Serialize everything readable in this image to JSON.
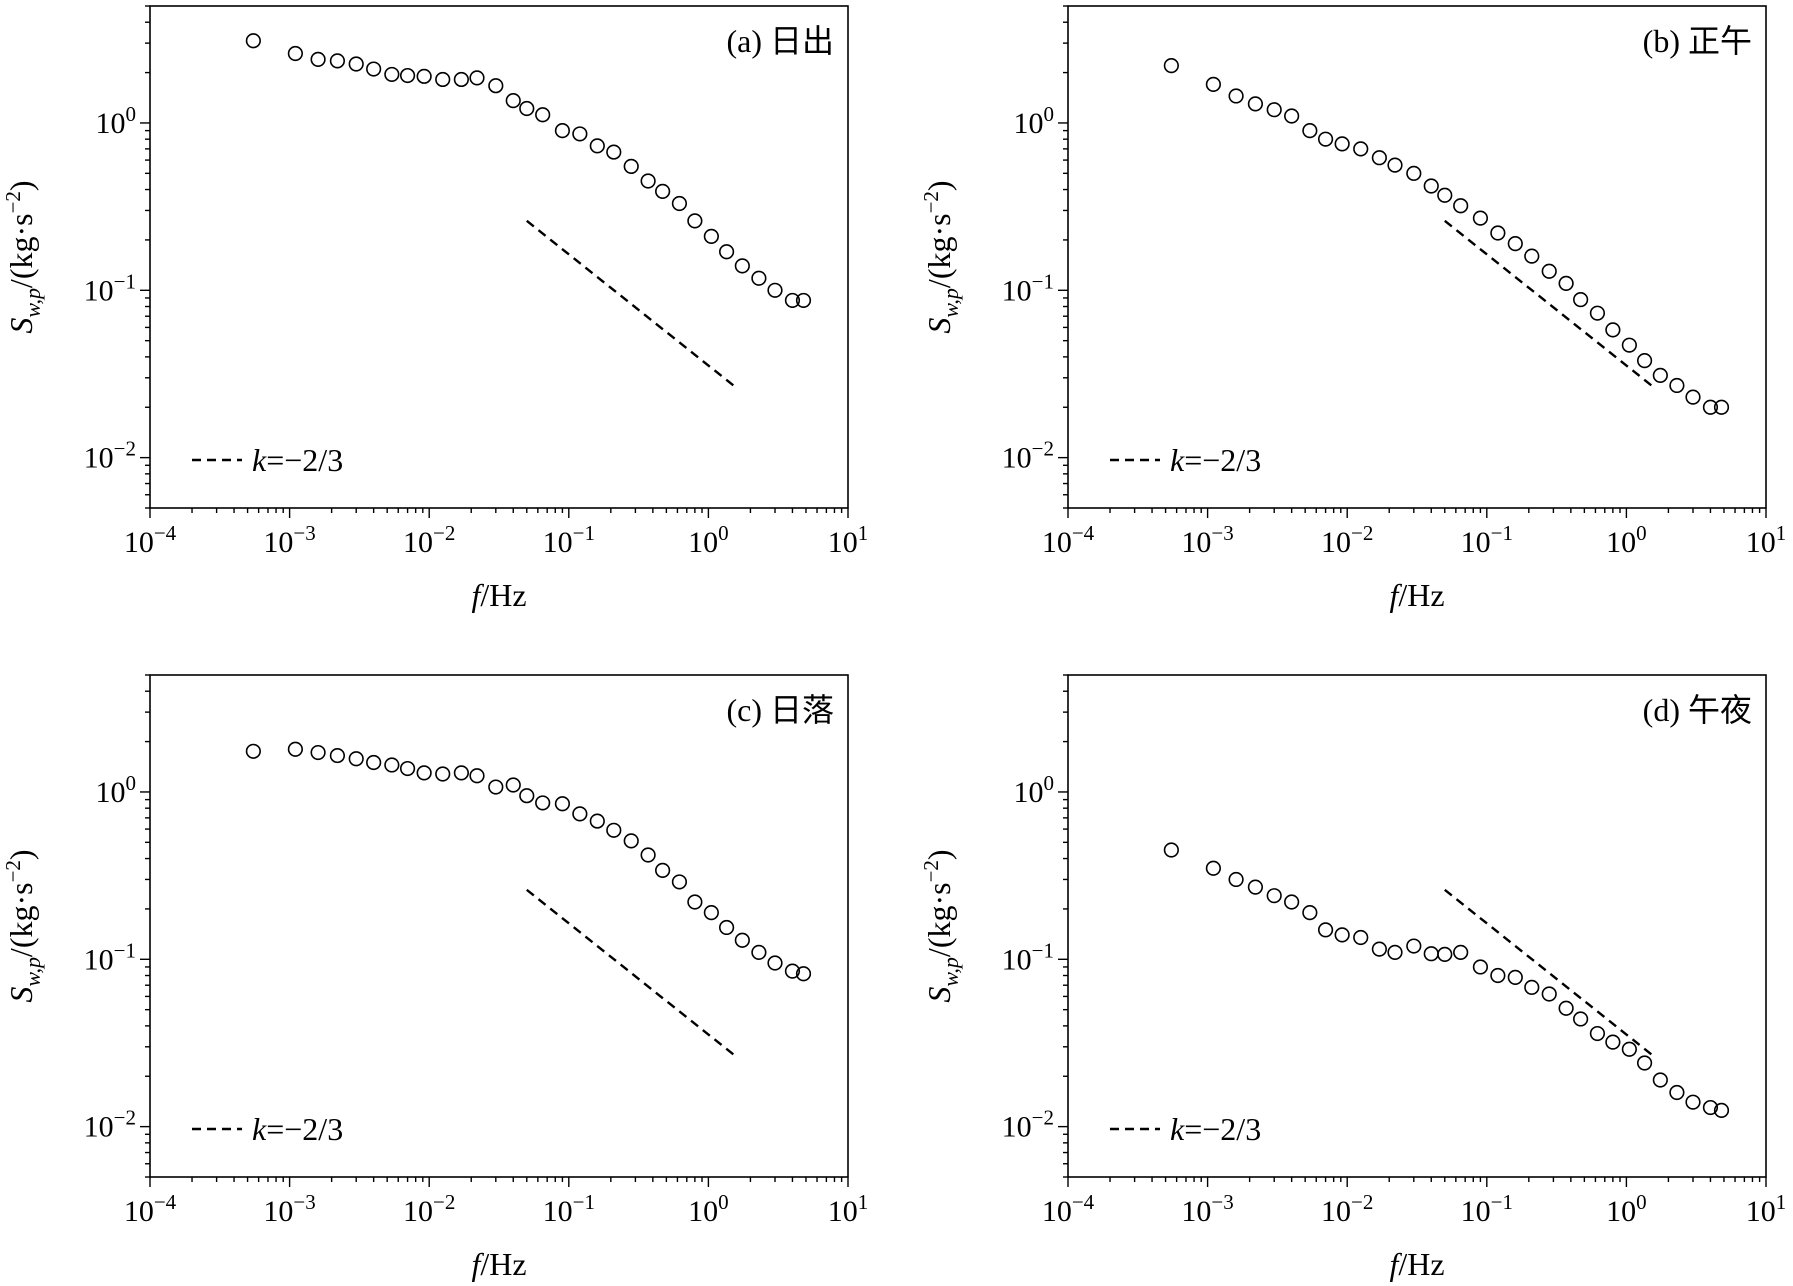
{
  "chart_data": [
    {
      "type": "scatter",
      "title": "(a) 日出",
      "xlabel_italic": "f",
      "xlabel_rest": "/Hz",
      "ylabel_main": "S",
      "ylabel_sub": "w,p",
      "ylabel_rest": "/(kg·s",
      "ylabel_sup": "−2",
      "ylabel_close": ")",
      "xscale": "log",
      "yscale": "log",
      "xlim": [
        0.0001,
        10
      ],
      "ylim": [
        0.005,
        5
      ],
      "xticks": [
        "10^-4",
        "10^-3",
        "10^-2",
        "10^-1",
        "10^0",
        "10^1"
      ],
      "yticks": [
        "10^-2",
        "10^-1",
        "10^0"
      ],
      "legend": {
        "label_k": "k",
        "label_rest": "=−2/3",
        "position": "bottom-left"
      },
      "reference_line": {
        "x": [
          0.05,
          1.6
        ],
        "y": [
          0.26,
          0.026
        ]
      },
      "series": [
        {
          "name": "S",
          "x": [
            0.00055,
            0.0011,
            0.0016,
            0.0022,
            0.003,
            0.004,
            0.0054,
            0.007,
            0.0092,
            0.0125,
            0.017,
            0.022,
            0.03,
            0.04,
            0.05,
            0.065,
            0.09,
            0.12,
            0.16,
            0.21,
            0.28,
            0.37,
            0.47,
            0.62,
            0.8,
            1.05,
            1.35,
            1.75,
            2.3,
            3.0,
            4.0,
            4.8
          ],
          "y": [
            3.1,
            2.6,
            2.4,
            2.35,
            2.25,
            2.1,
            1.95,
            1.92,
            1.9,
            1.82,
            1.82,
            1.86,
            1.67,
            1.36,
            1.22,
            1.12,
            0.9,
            0.86,
            0.73,
            0.67,
            0.55,
            0.45,
            0.39,
            0.33,
            0.26,
            0.21,
            0.17,
            0.14,
            0.118,
            0.1,
            0.087,
            0.087
          ]
        }
      ]
    },
    {
      "type": "scatter",
      "title": "(b) 正午",
      "xlabel_italic": "f",
      "xlabel_rest": "/Hz",
      "ylabel_main": "S",
      "ylabel_sub": "w,p",
      "ylabel_rest": "/(kg·s",
      "ylabel_sup": "−2",
      "ylabel_close": ")",
      "xscale": "log",
      "yscale": "log",
      "xlim": [
        0.0001,
        10
      ],
      "ylim": [
        0.005,
        5
      ],
      "xticks": [
        "10^-4",
        "10^-3",
        "10^-2",
        "10^-1",
        "10^0",
        "10^1"
      ],
      "yticks": [
        "10^-2",
        "10^-1",
        "10^0"
      ],
      "legend": {
        "label_k": "k",
        "label_rest": "=−2/3",
        "position": "bottom-left"
      },
      "reference_line": {
        "x": [
          0.05,
          1.6
        ],
        "y": [
          0.26,
          0.026
        ]
      },
      "series": [
        {
          "name": "S",
          "x": [
            0.00055,
            0.0011,
            0.0016,
            0.0022,
            0.003,
            0.004,
            0.0054,
            0.007,
            0.0092,
            0.0125,
            0.017,
            0.022,
            0.03,
            0.04,
            0.05,
            0.065,
            0.09,
            0.12,
            0.16,
            0.21,
            0.28,
            0.37,
            0.47,
            0.62,
            0.8,
            1.05,
            1.35,
            1.75,
            2.3,
            3.0,
            4.0,
            4.8
          ],
          "y": [
            2.2,
            1.7,
            1.45,
            1.3,
            1.2,
            1.1,
            0.9,
            0.8,
            0.75,
            0.7,
            0.62,
            0.56,
            0.5,
            0.42,
            0.37,
            0.32,
            0.27,
            0.22,
            0.19,
            0.16,
            0.13,
            0.11,
            0.088,
            0.073,
            0.058,
            0.047,
            0.038,
            0.031,
            0.027,
            0.023,
            0.02,
            0.02
          ]
        }
      ]
    },
    {
      "type": "scatter",
      "title": "(c) 日落",
      "xlabel_italic": "f",
      "xlabel_rest": "/Hz",
      "ylabel_main": "S",
      "ylabel_sub": "w,p",
      "ylabel_rest": "/(kg·s",
      "ylabel_sup": "−2",
      "ylabel_close": ")",
      "xscale": "log",
      "yscale": "log",
      "xlim": [
        0.0001,
        10
      ],
      "ylim": [
        0.005,
        5
      ],
      "xticks": [
        "10^-4",
        "10^-3",
        "10^-2",
        "10^-1",
        "10^0",
        "10^1"
      ],
      "yticks": [
        "10^-2",
        "10^-1",
        "10^0"
      ],
      "legend": {
        "label_k": "k",
        "label_rest": "=−2/3",
        "position": "bottom-left"
      },
      "reference_line": {
        "x": [
          0.05,
          1.6
        ],
        "y": [
          0.26,
          0.026
        ]
      },
      "series": [
        {
          "name": "S",
          "x": [
            0.00055,
            0.0011,
            0.0016,
            0.0022,
            0.003,
            0.004,
            0.0054,
            0.007,
            0.0092,
            0.0125,
            0.017,
            0.022,
            0.03,
            0.04,
            0.05,
            0.065,
            0.09,
            0.12,
            0.16,
            0.21,
            0.28,
            0.37,
            0.47,
            0.62,
            0.8,
            1.05,
            1.35,
            1.75,
            2.3,
            3.0,
            4.0,
            4.8
          ],
          "y": [
            1.75,
            1.8,
            1.72,
            1.65,
            1.58,
            1.5,
            1.45,
            1.38,
            1.3,
            1.28,
            1.3,
            1.25,
            1.07,
            1.1,
            0.95,
            0.86,
            0.85,
            0.74,
            0.67,
            0.59,
            0.51,
            0.42,
            0.34,
            0.29,
            0.22,
            0.19,
            0.155,
            0.13,
            0.11,
            0.095,
            0.085,
            0.082
          ]
        }
      ]
    },
    {
      "type": "scatter",
      "title": "(d) 午夜",
      "xlabel_italic": "f",
      "xlabel_rest": "/Hz",
      "ylabel_main": "S",
      "ylabel_sub": "w,p",
      "ylabel_rest": "/(kg·s",
      "ylabel_sup": "−2",
      "ylabel_close": ")",
      "xscale": "log",
      "yscale": "log",
      "xlim": [
        0.0001,
        10
      ],
      "ylim": [
        0.005,
        5
      ],
      "xticks": [
        "10^-4",
        "10^-3",
        "10^-2",
        "10^-1",
        "10^0",
        "10^1"
      ],
      "yticks": [
        "10^-2",
        "10^-1",
        "10^0"
      ],
      "legend": {
        "label_k": "k",
        "label_rest": "=−2/3",
        "position": "bottom-left"
      },
      "reference_line": {
        "x": [
          0.05,
          1.6
        ],
        "y": [
          0.26,
          0.026
        ]
      },
      "series": [
        {
          "name": "S",
          "x": [
            0.00055,
            0.0011,
            0.0016,
            0.0022,
            0.003,
            0.004,
            0.0054,
            0.007,
            0.0092,
            0.0125,
            0.017,
            0.022,
            0.03,
            0.04,
            0.05,
            0.065,
            0.09,
            0.12,
            0.16,
            0.21,
            0.28,
            0.37,
            0.47,
            0.62,
            0.8,
            1.05,
            1.35,
            1.75,
            2.3,
            3.0,
            4.0,
            4.8
          ],
          "y": [
            0.45,
            0.35,
            0.3,
            0.27,
            0.24,
            0.22,
            0.19,
            0.15,
            0.14,
            0.135,
            0.115,
            0.11,
            0.12,
            0.108,
            0.107,
            0.11,
            0.09,
            0.08,
            0.078,
            0.068,
            0.062,
            0.051,
            0.044,
            0.036,
            0.032,
            0.029,
            0.024,
            0.019,
            0.016,
            0.014,
            0.013,
            0.0125
          ]
        }
      ]
    }
  ]
}
